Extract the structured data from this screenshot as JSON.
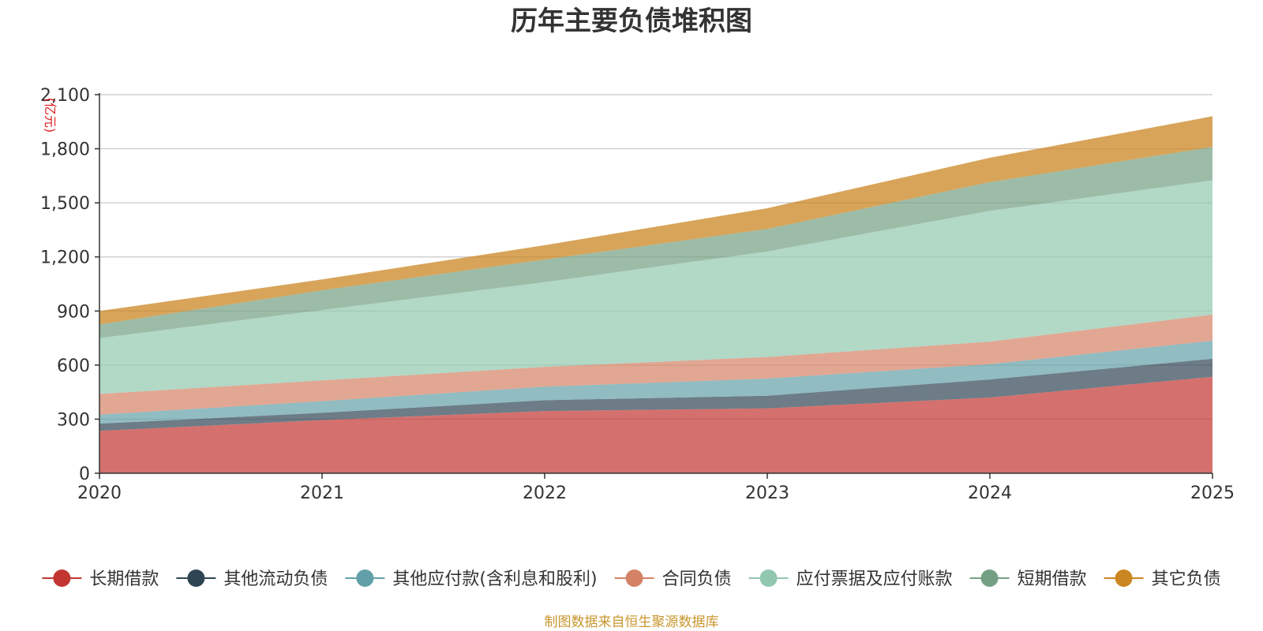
{
  "colors": {
    "series": [
      "#c23531",
      "#2f4554",
      "#61a0a8",
      "#d48265",
      "#91c7ae",
      "#749f83",
      "#ca8622"
    ],
    "grid": "#c8c8c8",
    "axis": "#333333",
    "text": "#333333",
    "unit": "#e02020",
    "source": "#c8962e"
  },
  "chart_data": {
    "type": "area",
    "stacked": true,
    "title": "历年主要负债堆积图",
    "unit": "(亿元)",
    "source_note": "制图数据来自恒生聚源数据库",
    "x": [
      "2020",
      "2021",
      "2022",
      "2023",
      "2024",
      "2025"
    ],
    "ylim": [
      0,
      2100
    ],
    "yticks": [
      0,
      300,
      600,
      900,
      1200,
      1500,
      1800,
      2100
    ],
    "ytick_labels": [
      "0",
      "300",
      "600",
      "900",
      "1,200",
      "1,500",
      "1,800",
      "2,100"
    ],
    "grid": true,
    "legend_position": "bottom",
    "series": [
      {
        "name": "长期借款",
        "values": [
          235,
          295,
          345,
          360,
          420,
          535
        ]
      },
      {
        "name": "其他流动负债",
        "values": [
          40,
          40,
          60,
          70,
          100,
          100
        ]
      },
      {
        "name": "其他应付款(含利息和股利)",
        "values": [
          50,
          65,
          75,
          95,
          85,
          100
        ]
      },
      {
        "name": "合同负债",
        "values": [
          115,
          115,
          110,
          120,
          125,
          145
        ]
      },
      {
        "name": "应付票据及应付账款",
        "values": [
          310,
          390,
          470,
          585,
          725,
          745
        ]
      },
      {
        "name": "短期借款",
        "values": [
          75,
          110,
          125,
          125,
          160,
          185
        ]
      },
      {
        "name": "其它负债",
        "values": [
          75,
          60,
          80,
          115,
          135,
          170
        ]
      }
    ]
  }
}
